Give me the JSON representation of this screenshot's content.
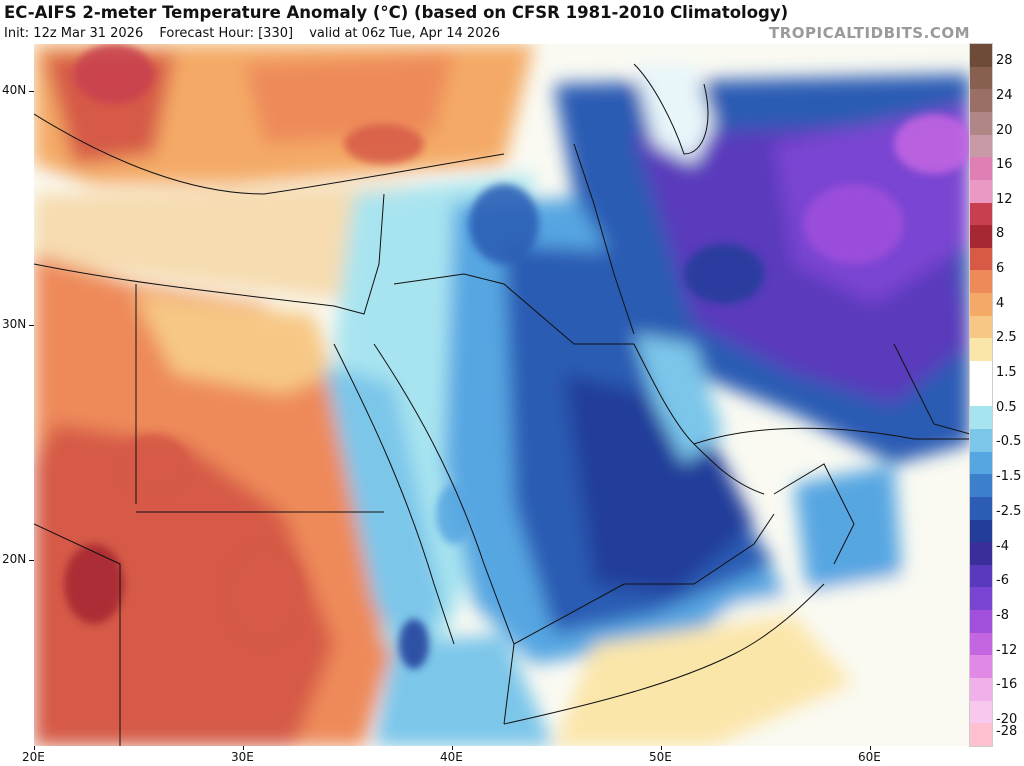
{
  "header": {
    "title": "EC-AIFS 2-meter Temperature Anomaly (°C) (based on CFSR 1981-2010 Climatology)",
    "init": "Init: 12z Mar 31 2026",
    "forecast_hour": "Forecast Hour: [330]",
    "valid": "valid at 06z Tue, Apr 14 2026",
    "credit": "TROPICALTIDBITS.COM"
  },
  "axes": {
    "lat_labels": [
      "40N",
      "30N",
      "20N"
    ],
    "lon_labels": [
      "20E",
      "30E",
      "40E",
      "50E",
      "60E"
    ]
  },
  "colorbar": {
    "labels": [
      "28",
      "24",
      "20",
      "16",
      "12",
      "8",
      "6",
      "4",
      "2.5",
      "1.5",
      "0.5",
      "-0.5",
      "-1.5",
      "-2.5",
      "-4",
      "-6",
      "-8",
      "-12",
      "-16",
      "-20",
      "-28"
    ],
    "colors": [
      "#6e4a38",
      "#876050",
      "#9a7066",
      "#b08686",
      "#c89aa8",
      "#e07fb4",
      "#ea98c4",
      "#c84050",
      "#a52832",
      "#d65a46",
      "#ee8a5a",
      "#f4aa66",
      "#f7c885",
      "#fbe6aa",
      "#ffffff",
      "#ffffff",
      "#a8e4f0",
      "#7cc6ea",
      "#56a6e2",
      "#3c80cc",
      "#2c5cb4",
      "#223e9a",
      "#3a2e9a",
      "#5a3abc",
      "#7a44d2",
      "#a050dc",
      "#c466e2",
      "#e08ae6",
      "#f0b0ea",
      "#f8c8ee",
      "#ffc0d0"
    ],
    "cell_count": 31
  },
  "map_colors": {
    "ocean_med": "#f6dcb0",
    "ocean_neutral": "#fafaf2",
    "sahara_warm": "#ee8a5a",
    "sahara_hot": "#d65a46",
    "desert_light": "#f7c885",
    "cool_light": "#a8e4f0",
    "cool_mid": "#56a6e2",
    "cool_strong": "#2c5cb4",
    "cool_deep": "#223e9a",
    "iran_purple": "#5a3abc",
    "iran_violet": "#7a44d2",
    "border": "#111111"
  }
}
